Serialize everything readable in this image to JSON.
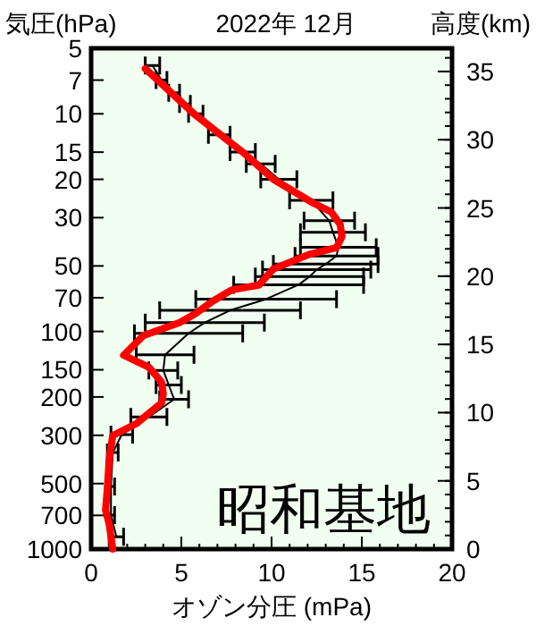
{
  "chart_data": {
    "type": "line",
    "title": "2022年 12月",
    "ylabel": "気圧(hPa)",
    "y2label": "高度(km)",
    "xlabel": "オゾン分圧 (mPa)",
    "annotations": [
      "昭和基地"
    ],
    "log": "y",
    "xlim": [
      0,
      20
    ],
    "xticks": [
      0,
      5,
      10,
      15,
      20
    ],
    "ylim": [
      1000,
      5
    ],
    "yticks": [
      5,
      7,
      10,
      15,
      20,
      30,
      50,
      70,
      100,
      150,
      200,
      300,
      500,
      700,
      1000
    ],
    "y2lim": [
      0,
      36.7
    ],
    "y2ticks": [
      0,
      5,
      10,
      15,
      20,
      25,
      30,
      35
    ],
    "grid": false,
    "series": [
      {
        "color": "#000000",
        "x": [
          3.4,
          3.9,
          4.6,
          5.2,
          5.8,
          7.1,
          8.4,
          9.4,
          10.4,
          12.2,
          13.2,
          13.4,
          13.7,
          13.6,
          13,
          12.5,
          12.1,
          11.5,
          9.7,
          7.7,
          6.3,
          5.4,
          4.1,
          4,
          4.3,
          4.6,
          3.2,
          1.7,
          1.2,
          1.1,
          1.1,
          1.4
        ],
        "values": [
          6,
          7,
          8,
          9,
          10,
          12.5,
          15,
          17,
          20,
          25,
          31,
          35,
          41,
          45,
          49,
          52,
          56,
          61,
          71,
          80,
          91,
          102,
          128,
          151,
          176,
          205,
          247,
          298,
          360,
          516,
          698,
          877
        ],
        "xerrors": [
          0.4,
          0.3,
          0.3,
          0.3,
          0.4,
          0.6,
          0.7,
          0.8,
          1,
          1.2,
          1.4,
          1.8,
          2.1,
          2.3,
          2.9,
          3,
          3,
          3.6,
          3.9,
          3.9,
          3.3,
          3,
          1.6,
          0.8,
          0.7,
          0.8,
          1,
          0.6,
          0.3,
          0.2,
          0.2,
          0.4
        ]
      },
      {
        "color": "#ff0000",
        "x": [
          3,
          5.7,
          8.4,
          10.1,
          12.3,
          13.3,
          13.8,
          13.9,
          13.6,
          12.1,
          10.1,
          9.3,
          7.8,
          6.7,
          5.8,
          4.9,
          2.9,
          1.8,
          3.2,
          3.9,
          4,
          3.9,
          2.5,
          1.2,
          1,
          0.9,
          0.8,
          1,
          1.2
        ],
        "values": [
          6.2,
          10,
          15,
          20,
          25.7,
          28.2,
          32.2,
          36.6,
          41.2,
          44.2,
          51.6,
          61.2,
          64.4,
          72.9,
          82.7,
          91,
          104.4,
          128.6,
          146,
          170.6,
          193.7,
          212.9,
          265.4,
          300.6,
          387,
          526,
          661,
          767,
          1000
        ]
      }
    ]
  }
}
